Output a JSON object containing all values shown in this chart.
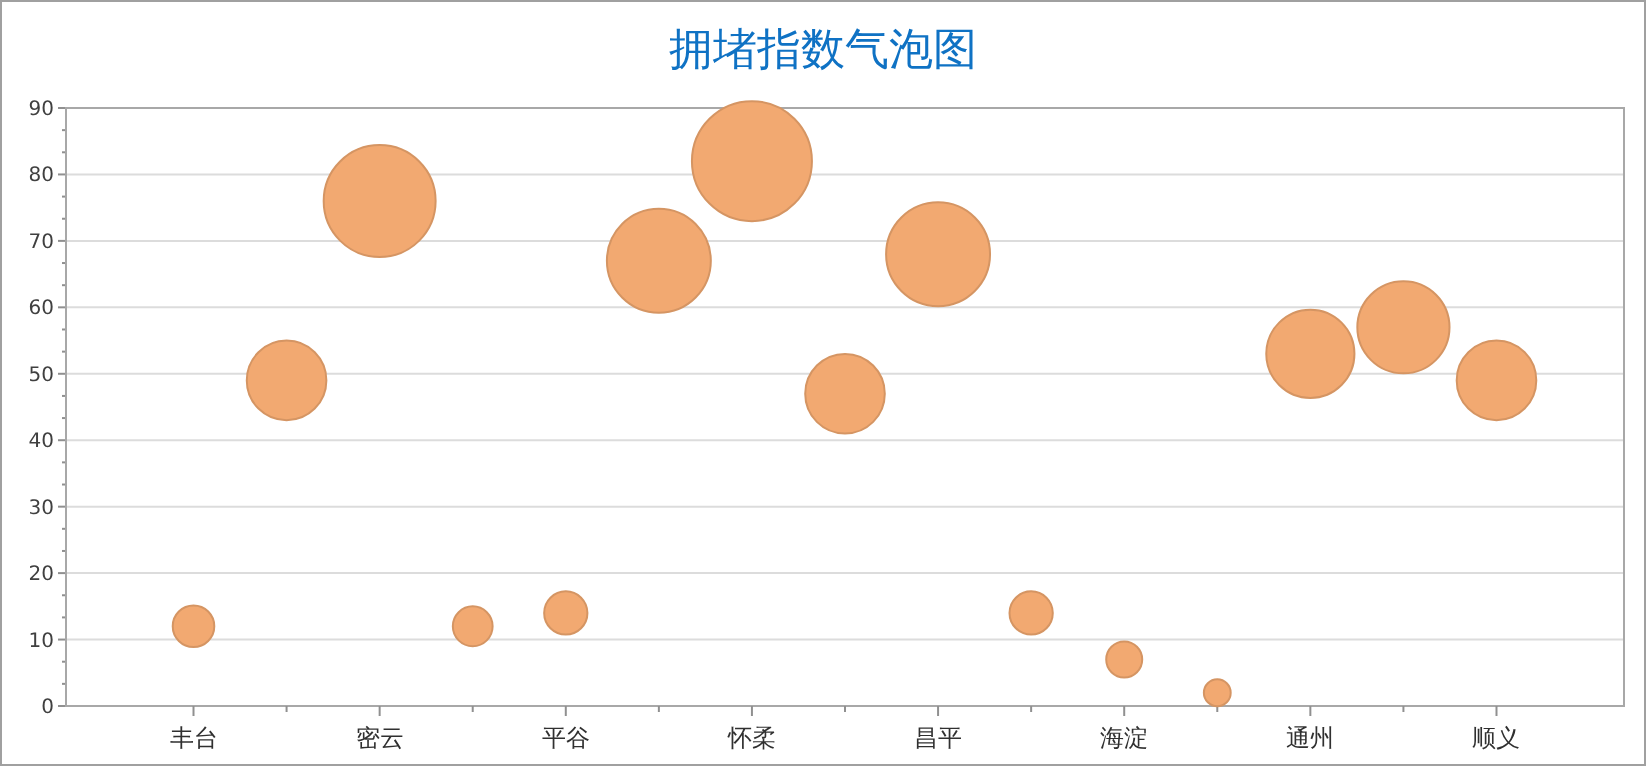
{
  "chart_data": {
    "type": "bubble",
    "title": "拥堵指数气泡图",
    "categories": [
      "丰台",
      null,
      "密云",
      null,
      "平谷",
      null,
      "怀柔",
      null,
      "昌平",
      null,
      "海淀",
      null,
      "通州",
      null,
      "顺义"
    ],
    "values": [
      12,
      49,
      76,
      12,
      14,
      67,
      82,
      47,
      68,
      14,
      7,
      2,
      53,
      57,
      49
    ],
    "sizes": [
      0.12,
      0.44,
      0.87,
      0.11,
      0.13,
      0.75,
      1,
      0.44,
      0.75,
      0.13,
      0.09,
      0.05,
      0.54,
      0.59,
      0.44
    ],
    "color": "#f2a971",
    "ylim": [
      0,
      90
    ],
    "yticks": [
      0,
      10,
      20,
      30,
      40,
      50,
      60,
      70,
      80,
      90
    ],
    "grid": "y"
  }
}
